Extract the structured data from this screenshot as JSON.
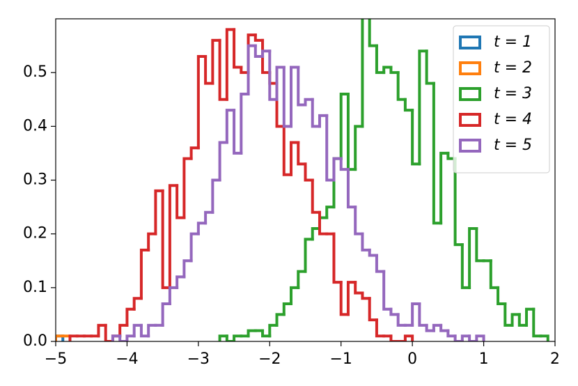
{
  "chart_data": {
    "type": "histogram",
    "histtype": "step",
    "xlim": [
      -5,
      2
    ],
    "ylim": [
      0,
      0.6
    ],
    "xticks": [
      {
        "value": -5,
        "label": "−5"
      },
      {
        "value": -4,
        "label": "−4"
      },
      {
        "value": -3,
        "label": "−3"
      },
      {
        "value": -2,
        "label": "−2"
      },
      {
        "value": -1,
        "label": "−1"
      },
      0,
      1,
      2
    ],
    "yticks": [
      {
        "value": 0,
        "label": "0.0"
      },
      0.1,
      0.2,
      0.3,
      0.4,
      0.5
    ],
    "legend": "upper right",
    "series": [
      {
        "name": "t = 1",
        "color": "#1f77b4",
        "bins": [
          -5,
          -4.9
        ],
        "values": [
          0.01
        ]
      },
      {
        "name": "t = 2",
        "color": "#ff7f0e",
        "bins": [
          -5,
          -4.9,
          -4.8
        ],
        "values": [
          0.01,
          0.01
        ]
      },
      {
        "name": "t = 3",
        "color": "#2ca02c",
        "bins": [
          -2.7,
          -2.6,
          -2.5,
          -2.4,
          -2.3,
          -2.2,
          -2.1,
          -2.0,
          -1.9,
          -1.8,
          -1.7,
          -1.6,
          -1.5,
          -1.4,
          -1.3,
          -1.2,
          -1.1,
          -1.0,
          -0.9,
          -0.8,
          -0.7,
          -0.6,
          -0.5,
          -0.4,
          -0.3,
          -0.2,
          -0.1,
          0.0,
          0.1,
          0.2,
          0.3,
          0.4,
          0.5,
          0.6,
          0.7,
          0.8,
          0.9,
          1.0,
          1.1,
          1.2,
          1.3,
          1.4,
          1.5,
          1.6,
          1.7,
          1.8,
          1.9
        ],
        "values": [
          0.01,
          0.0,
          0.01,
          0.01,
          0.02,
          0.02,
          0.01,
          0.03,
          0.05,
          0.07,
          0.1,
          0.13,
          0.19,
          0.21,
          0.23,
          0.25,
          0.34,
          0.46,
          0.32,
          0.4,
          0.62,
          0.55,
          0.5,
          0.51,
          0.5,
          0.45,
          0.43,
          0.33,
          0.54,
          0.48,
          0.22,
          0.35,
          0.34,
          0.18,
          0.1,
          0.21,
          0.15,
          0.15,
          0.1,
          0.07,
          0.03,
          0.05,
          0.03,
          0.06,
          0.01,
          0.01
        ]
      },
      {
        "name": "t = 4",
        "color": "#d62728",
        "bins": [
          -4.8,
          -4.7,
          -4.6,
          -4.5,
          -4.4,
          -4.3,
          -4.2,
          -4.1,
          -4.0,
          -3.9,
          -3.8,
          -3.7,
          -3.6,
          -3.5,
          -3.4,
          -3.3,
          -3.2,
          -3.1,
          -3.0,
          -2.9,
          -2.8,
          -2.7,
          -2.6,
          -2.5,
          -2.4,
          -2.3,
          -2.2,
          -2.1,
          -2.0,
          -1.9,
          -1.8,
          -1.7,
          -1.6,
          -1.5,
          -1.4,
          -1.3,
          -1.2,
          -1.1,
          -1.0,
          -0.9,
          -0.8,
          -0.7,
          -0.6,
          -0.5,
          -0.4,
          -0.3,
          -0.2,
          -0.1,
          0.0
        ],
        "values": [
          0.01,
          0.01,
          0.01,
          0.01,
          0.03,
          0.0,
          0.01,
          0.03,
          0.06,
          0.08,
          0.17,
          0.2,
          0.28,
          0.1,
          0.29,
          0.23,
          0.34,
          0.36,
          0.53,
          0.48,
          0.56,
          0.45,
          0.58,
          0.51,
          0.5,
          0.57,
          0.56,
          0.5,
          0.48,
          0.4,
          0.31,
          0.37,
          0.33,
          0.3,
          0.24,
          0.2,
          0.2,
          0.11,
          0.05,
          0.11,
          0.09,
          0.08,
          0.04,
          0.01,
          0.01,
          0.0,
          0.0,
          0.01
        ]
      },
      {
        "name": "t = 5",
        "color": "#9467bd",
        "bins": [
          -4.2,
          -4.1,
          -4.0,
          -3.9,
          -3.8,
          -3.7,
          -3.6,
          -3.5,
          -3.4,
          -3.3,
          -3.2,
          -3.1,
          -3.0,
          -2.9,
          -2.8,
          -2.7,
          -2.6,
          -2.5,
          -2.4,
          -2.3,
          -2.2,
          -2.1,
          -2.0,
          -1.9,
          -1.8,
          -1.7,
          -1.6,
          -1.5,
          -1.4,
          -1.3,
          -1.2,
          -1.1,
          -1.0,
          -0.9,
          -0.8,
          -0.7,
          -0.6,
          -0.5,
          -0.4,
          -0.3,
          -0.2,
          -0.1,
          0.0,
          0.1,
          0.2,
          0.3,
          0.4,
          0.5,
          0.6,
          0.7,
          0.8,
          0.9,
          1.0
        ],
        "values": [
          0.01,
          0.0,
          0.01,
          0.03,
          0.01,
          0.03,
          0.03,
          0.07,
          0.1,
          0.12,
          0.15,
          0.2,
          0.22,
          0.24,
          0.3,
          0.37,
          0.43,
          0.35,
          0.46,
          0.55,
          0.53,
          0.54,
          0.45,
          0.51,
          0.4,
          0.51,
          0.44,
          0.45,
          0.4,
          0.42,
          0.3,
          0.34,
          0.32,
          0.25,
          0.2,
          0.17,
          0.16,
          0.13,
          0.06,
          0.05,
          0.03,
          0.03,
          0.07,
          0.03,
          0.02,
          0.03,
          0.02,
          0.01,
          0.0,
          0.01,
          0.0,
          0.01
        ]
      }
    ]
  }
}
